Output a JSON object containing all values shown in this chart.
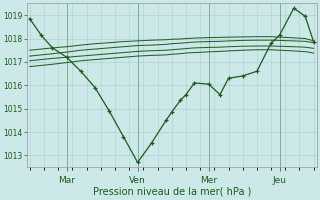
{
  "xlabel": "Pression niveau de la mer( hPa )",
  "bg_color": "#cce8e8",
  "grid_color": "#b0d0d0",
  "line_color": "#1a5c1a",
  "ylim": [
    1012.5,
    1019.5
  ],
  "yticks": [
    1013,
    1014,
    1015,
    1016,
    1017,
    1018,
    1019
  ],
  "xtick_labels": [
    "Mar",
    "Ven",
    "Mer",
    "Jeu"
  ],
  "xtick_positions": [
    0.13,
    0.38,
    0.63,
    0.88
  ],
  "main_line_x": [
    0.0,
    0.04,
    0.08,
    0.13,
    0.18,
    0.23,
    0.28,
    0.33,
    0.38,
    0.43,
    0.48,
    0.5,
    0.53,
    0.55,
    0.58,
    0.63,
    0.67,
    0.7,
    0.75,
    0.8,
    0.85,
    0.88,
    0.93,
    0.97,
    1.0
  ],
  "main_line_y": [
    1018.85,
    1018.15,
    1017.6,
    1017.2,
    1016.6,
    1015.9,
    1014.9,
    1013.8,
    1012.7,
    1013.55,
    1014.5,
    1014.85,
    1015.35,
    1015.6,
    1016.1,
    1016.05,
    1015.6,
    1016.3,
    1016.4,
    1016.6,
    1017.8,
    1018.15,
    1019.3,
    1018.95,
    1017.85
  ],
  "line1": [
    1017.25,
    1017.3,
    1017.35,
    1017.42,
    1017.5,
    1017.55,
    1017.6,
    1017.65,
    1017.7,
    1017.72,
    1017.75,
    1017.78,
    1017.8,
    1017.82,
    1017.85,
    1017.87,
    1017.88,
    1017.9,
    1017.92,
    1017.93,
    1017.93,
    1017.92,
    1017.9,
    1017.88,
    1017.82
  ],
  "line2": [
    1017.05,
    1017.1,
    1017.15,
    1017.2,
    1017.25,
    1017.3,
    1017.35,
    1017.4,
    1017.45,
    1017.48,
    1017.5,
    1017.52,
    1017.55,
    1017.57,
    1017.6,
    1017.62,
    1017.63,
    1017.65,
    1017.67,
    1017.68,
    1017.68,
    1017.67,
    1017.65,
    1017.63,
    1017.58
  ],
  "line3": [
    1017.5,
    1017.55,
    1017.6,
    1017.65,
    1017.72,
    1017.78,
    1017.82,
    1017.87,
    1017.9,
    1017.93,
    1017.95,
    1017.97,
    1017.98,
    1018.0,
    1018.02,
    1018.04,
    1018.05,
    1018.06,
    1018.07,
    1018.08,
    1018.08,
    1018.06,
    1018.03,
    1018.0,
    1017.9
  ],
  "line4": [
    1016.8,
    1016.85,
    1016.9,
    1016.97,
    1017.05,
    1017.1,
    1017.15,
    1017.2,
    1017.25,
    1017.28,
    1017.3,
    1017.33,
    1017.35,
    1017.38,
    1017.4,
    1017.43,
    1017.45,
    1017.47,
    1017.5,
    1017.52,
    1017.52,
    1017.5,
    1017.47,
    1017.44,
    1017.38
  ]
}
